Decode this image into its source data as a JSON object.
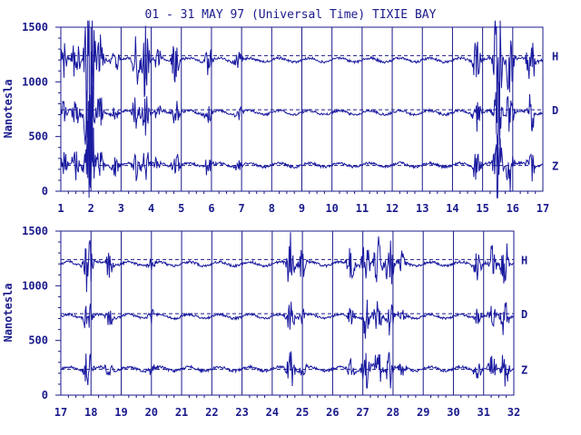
{
  "chart_data": {
    "type": "line",
    "title": "01 - 31 MAY 97 (Universal Time) TIXIE BAY",
    "ylabel": "Nanotesla",
    "ylim": [
      0,
      1500
    ],
    "yticks": [
      0,
      500,
      1000,
      1500
    ],
    "grid": true,
    "components": [
      {
        "name": "H",
        "baseline": 1240,
        "level": 1200
      },
      {
        "name": "D",
        "baseline": 745,
        "level": 720
      },
      {
        "name": "Z",
        "baseline": 235,
        "level": 240
      }
    ],
    "panels": [
      {
        "xlim": [
          1,
          17
        ],
        "xticks": [
          "1",
          "2",
          "3",
          "4",
          "5",
          "6",
          "7",
          "8",
          "9",
          "10",
          "11",
          "12",
          "13",
          "14",
          "15",
          "16",
          "17"
        ],
        "disturbances": [
          {
            "day": 1.1,
            "amp": 150
          },
          {
            "day": 1.5,
            "amp": 200
          },
          {
            "day": 1.9,
            "amp": 600
          },
          {
            "day": 2.0,
            "amp": 700
          },
          {
            "day": 2.3,
            "amp": 200
          },
          {
            "day": 2.8,
            "amp": 120
          },
          {
            "day": 3.5,
            "amp": 200
          },
          {
            "day": 3.8,
            "amp": 300
          },
          {
            "day": 4.2,
            "amp": 100
          },
          {
            "day": 4.8,
            "amp": 200
          },
          {
            "day": 5.9,
            "amp": 120
          },
          {
            "day": 6.9,
            "amp": 100
          },
          {
            "day": 14.8,
            "amp": 200
          },
          {
            "day": 15.5,
            "amp": 650
          },
          {
            "day": 15.9,
            "amp": 350
          },
          {
            "day": 16.6,
            "amp": 250
          }
        ]
      },
      {
        "xlim": [
          17,
          32
        ],
        "xticks": [
          "17",
          "18",
          "19",
          "20",
          "21",
          "22",
          "23",
          "24",
          "25",
          "26",
          "27",
          "28",
          "29",
          "30",
          "31",
          "32"
        ],
        "disturbances": [
          {
            "day": 17.9,
            "amp": 300
          },
          {
            "day": 18.6,
            "amp": 100
          },
          {
            "day": 20.0,
            "amp": 80
          },
          {
            "day": 24.6,
            "amp": 250
          },
          {
            "day": 25.0,
            "amp": 120
          },
          {
            "day": 26.6,
            "amp": 150
          },
          {
            "day": 27.1,
            "amp": 300
          },
          {
            "day": 27.5,
            "amp": 250
          },
          {
            "day": 27.9,
            "amp": 220
          },
          {
            "day": 28.3,
            "amp": 100
          },
          {
            "day": 30.8,
            "amp": 120
          },
          {
            "day": 31.3,
            "amp": 150
          },
          {
            "day": 31.7,
            "amp": 260
          }
        ]
      }
    ]
  }
}
